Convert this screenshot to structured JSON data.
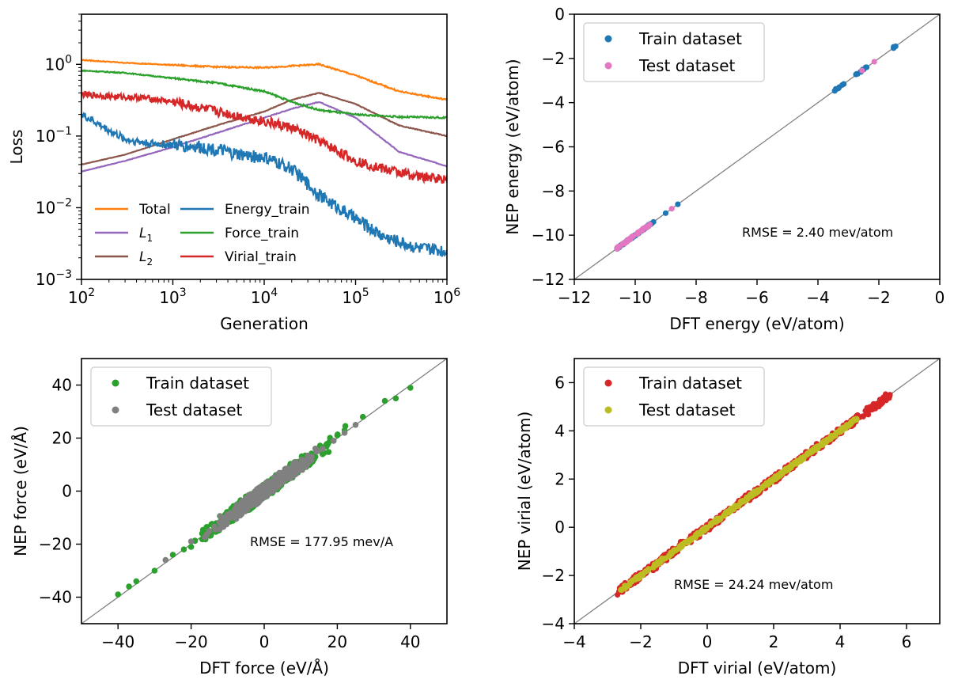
{
  "chart_data": [
    {
      "type": "line",
      "xlabel": "Generation",
      "ylabel": "Loss",
      "xscale": "log",
      "yscale": "log",
      "xlim": [
        100,
        1000000
      ],
      "ylim": [
        0.001,
        5
      ],
      "xtick_labels": [
        "10^2",
        "10^3",
        "10^4",
        "10^5",
        "10^6"
      ],
      "ytick_labels": [
        "10^-3",
        "10^-2",
        "10^-1",
        "10^0"
      ],
      "legend": "lower-left",
      "series": [
        {
          "name": "Total",
          "color": "#ff7f0e",
          "x": [
            100,
            300,
            1000,
            3000,
            10000,
            20000,
            40000,
            100000,
            300000,
            1000000
          ],
          "y": [
            1.15,
            1.05,
            0.98,
            0.92,
            0.9,
            0.95,
            1.0,
            0.7,
            0.42,
            0.32
          ]
        },
        {
          "name": "L_1",
          "color": "#9467bd",
          "x": [
            100,
            300,
            1000,
            3000,
            10000,
            20000,
            40000,
            100000,
            300000,
            1000000
          ],
          "y": [
            0.032,
            0.045,
            0.07,
            0.11,
            0.18,
            0.24,
            0.3,
            0.18,
            0.06,
            0.038
          ]
        },
        {
          "name": "L_2",
          "color": "#8c564b",
          "x": [
            100,
            300,
            1000,
            3000,
            10000,
            20000,
            40000,
            100000,
            300000,
            1000000
          ],
          "y": [
            0.04,
            0.055,
            0.09,
            0.14,
            0.22,
            0.32,
            0.4,
            0.28,
            0.14,
            0.1
          ]
        },
        {
          "name": "Energy_train",
          "color": "#1f77b4",
          "x": [
            100,
            200,
            300,
            500,
            1000,
            2000,
            3000,
            5000,
            10000,
            20000,
            40000,
            100000,
            200000,
            500000,
            1000000
          ],
          "y": [
            0.2,
            0.12,
            0.09,
            0.08,
            0.075,
            0.07,
            0.065,
            0.055,
            0.05,
            0.035,
            0.015,
            0.007,
            0.004,
            0.0027,
            0.0025
          ]
        },
        {
          "name": "Force_train",
          "color": "#2ca02c",
          "x": [
            100,
            300,
            1000,
            3000,
            10000,
            20000,
            40000,
            100000,
            300000,
            1000000
          ],
          "y": [
            0.82,
            0.76,
            0.64,
            0.55,
            0.42,
            0.3,
            0.23,
            0.2,
            0.185,
            0.18
          ]
        },
        {
          "name": "Virial_train",
          "color": "#d62728",
          "x": [
            100,
            200,
            300,
            500,
            1000,
            3000,
            10000,
            20000,
            40000,
            100000,
            200000,
            500000,
            1000000
          ],
          "y": [
            0.38,
            0.36,
            0.35,
            0.34,
            0.3,
            0.22,
            0.16,
            0.13,
            0.085,
            0.045,
            0.035,
            0.027,
            0.025
          ]
        }
      ]
    },
    {
      "type": "scatter",
      "xlabel": "DFT energy (eV/atom)",
      "ylabel": "NEP energy (eV/atom)",
      "xlim": [
        -12,
        0
      ],
      "ylim": [
        -12,
        0
      ],
      "xticks": [
        -12,
        -10,
        -8,
        -6,
        -4,
        -2,
        0
      ],
      "yticks": [
        -12,
        -10,
        -8,
        -6,
        -4,
        -2,
        0
      ],
      "annotation": "RMSE = 2.40 mev/atom",
      "legend": "upper-left",
      "series": [
        {
          "name": "Train dataset",
          "color": "#1f77b4",
          "x": [
            -10.6,
            -10.4,
            -10.2,
            -10.0,
            -9.8,
            -9.6,
            -9.4,
            -9.0,
            -8.6,
            -3.4,
            -3.3,
            -3.2,
            -2.7,
            -2.6,
            -2.5,
            -2.4,
            -1.5,
            -1.45
          ],
          "y": [
            -10.6,
            -10.4,
            -10.2,
            -10.0,
            -9.8,
            -9.6,
            -9.4,
            -9.0,
            -8.6,
            -3.4,
            -3.3,
            -3.2,
            -2.7,
            -2.6,
            -2.5,
            -2.4,
            -1.5,
            -1.45
          ]
        },
        {
          "name": "Test dataset",
          "color": "#e377c2",
          "x": [
            -10.55,
            -10.35,
            -10.15,
            -9.95,
            -9.75,
            -9.55,
            -8.8,
            -2.55,
            -2.15
          ],
          "y": [
            -10.55,
            -10.35,
            -10.15,
            -9.95,
            -9.75,
            -9.55,
            -8.8,
            -2.55,
            -2.15
          ]
        }
      ]
    },
    {
      "type": "scatter",
      "xlabel": "DFT force (eV/Å)",
      "ylabel": "NEP force (eV/Å)",
      "xlim": [
        -50,
        50
      ],
      "ylim": [
        -50,
        50
      ],
      "xticks": [
        -40,
        -20,
        0,
        20,
        40
      ],
      "yticks": [
        -40,
        -20,
        0,
        20,
        40
      ],
      "annotation": "RMSE = 177.95 mev/A",
      "legend": "upper-left",
      "series": [
        {
          "name": "Train dataset",
          "color": "#2ca02c",
          "x": [
            -40,
            -37,
            -35,
            -30,
            -25,
            -22,
            -20,
            -17,
            -14,
            -10,
            -6,
            -3,
            0,
            3,
            6,
            10,
            14,
            18,
            20,
            22,
            27,
            33,
            36,
            40
          ],
          "y": [
            -39,
            -36,
            -34,
            -30,
            -24,
            -22,
            -21,
            -16,
            -15,
            -9,
            -7,
            -2,
            0,
            4,
            5,
            11,
            13,
            19,
            21,
            23,
            28,
            34,
            35,
            39
          ]
        },
        {
          "name": "Test dataset",
          "color": "#808080",
          "x": [
            -27,
            -20,
            -15,
            -10,
            -8,
            -5,
            -3,
            0,
            3,
            5,
            8,
            10,
            13,
            16,
            19,
            22,
            25
          ],
          "y": [
            -26,
            -19,
            -15,
            -9,
            -8,
            -5,
            -3,
            0,
            3,
            5,
            8,
            10,
            13,
            16,
            19,
            22,
            25
          ]
        }
      ]
    },
    {
      "type": "scatter",
      "xlabel": "DFT virial (eV/atom)",
      "ylabel": "NEP virial (eV/atom)",
      "xlim": [
        -4,
        7
      ],
      "ylim": [
        -4,
        7
      ],
      "xticks": [
        -4,
        -2,
        0,
        2,
        4,
        6
      ],
      "yticks": [
        -4,
        -2,
        0,
        2,
        4,
        6
      ],
      "annotation": "RMSE = 24.24 mev/atom",
      "legend": "upper-left",
      "series": [
        {
          "name": "Train dataset",
          "color": "#d62728",
          "x": [
            -2.7,
            -2.5,
            -2.2,
            -1.8,
            -1.4,
            -1.0,
            -0.8,
            -0.5,
            -0.2,
            0.2,
            0.5,
            0.8,
            1.2,
            1.6,
            2.0,
            2.4,
            2.8,
            3.2,
            3.6,
            4.0,
            4.4,
            4.8,
            5.2,
            5.5
          ],
          "y": [
            -2.8,
            -2.4,
            -2.3,
            -1.7,
            -1.3,
            -1.1,
            -0.6,
            -0.6,
            -0.1,
            0.1,
            0.6,
            0.7,
            1.3,
            1.5,
            2.1,
            2.3,
            2.9,
            3.1,
            3.7,
            3.9,
            4.5,
            4.7,
            5.3,
            5.5
          ]
        },
        {
          "name": "Test dataset",
          "color": "#bcbd22",
          "x": [
            -2.6,
            -2.0,
            -1.5,
            -1.0,
            -0.5,
            0.0,
            0.5,
            1.0,
            1.5,
            2.0,
            2.5,
            3.0,
            3.5,
            4.0,
            4.5
          ],
          "y": [
            -2.6,
            -2.0,
            -1.5,
            -1.0,
            -0.5,
            0.0,
            0.5,
            1.0,
            1.5,
            2.0,
            2.5,
            3.0,
            3.5,
            4.0,
            4.5
          ]
        }
      ]
    }
  ]
}
